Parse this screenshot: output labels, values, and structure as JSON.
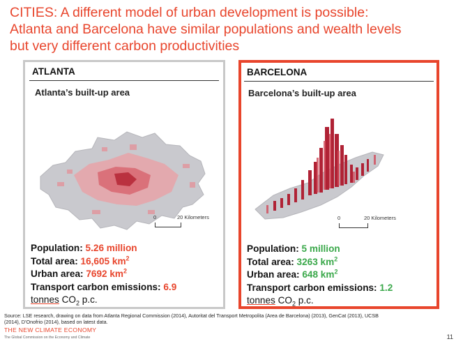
{
  "title": {
    "line1": "CITIES: A different model of urban development is possible:",
    "line2": "Atlanta and Barcelona have similar populations and wealth levels",
    "line3": "but very different carbon productivities"
  },
  "atlanta": {
    "heading": "ATLANTA",
    "subtitle": "Atlanta’s built-up area",
    "scale": {
      "start": "0",
      "end": "20 Kilometers"
    },
    "stats": {
      "population_label": "Population:",
      "population_value": "5.26 million",
      "total_area_label": "Total area:",
      "total_area_value": "16,605 km",
      "urban_area_label": "Urban area:",
      "urban_area_value": "7692 km",
      "transport_label": "Transport carbon emissions:",
      "transport_value": "6.9",
      "tonnes_label": "tonnes",
      "co2_label": "CO",
      "pc_label": "p.c."
    },
    "value_color": "#e8452c"
  },
  "barcelona": {
    "heading": "BARCELONA",
    "subtitle": "Barcelona’s built-up area",
    "scale": {
      "start": "0",
      "end": "20 Kilometers"
    },
    "stats": {
      "population_label": "Population:",
      "population_value": "5 million",
      "total_area_label": "Total area:",
      "total_area_value": "3263 km",
      "urban_area_label": "Urban area:",
      "urban_area_value": "648 km",
      "transport_label": "Transport carbon emissions:",
      "transport_value": "1.2",
      "tonnes_label": "tonnes",
      "co2_label": "CO",
      "pc_label": "p.c."
    },
    "value_color": "#3aa84a"
  },
  "source": {
    "line1": "Source: LSE research, drawing on data from Atlanta Regional Commission (2014), Autoritat del Transport Metropolita (Area de Barcelona) (2013), GenCat (2013), UCSB",
    "line2": "(2014), D’Onofrio (2014), based on latest data."
  },
  "footer": {
    "brand": "THE NEW CLIMATE ECONOMY",
    "tagline": "The Global Commission on the Economy and Climate",
    "page": "11"
  },
  "colors": {
    "accent": "#e8452c",
    "green": "#3aa84a",
    "grey_border": "#c8c8c8"
  }
}
